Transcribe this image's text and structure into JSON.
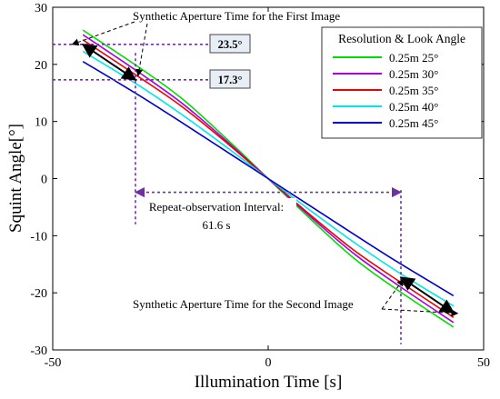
{
  "chart_data": {
    "type": "line",
    "title": "",
    "xlabel": "Illumination Time [s]",
    "ylabel": "Squint Angle[°]",
    "xlim": [
      -50,
      50
    ],
    "ylim": [
      -30,
      30
    ],
    "x_ticks": [
      -50,
      0,
      50
    ],
    "y_ticks": [
      -30,
      -20,
      -10,
      0,
      10,
      20,
      30
    ],
    "grid": false,
    "legend_title": "Resolution & Look Angle",
    "legend_position": "top-right",
    "series": [
      {
        "name": "0.25m 25°",
        "color": "#00dd00",
        "x": [
          -43,
          -30,
          -20,
          -10,
          0,
          10,
          20,
          30,
          43
        ],
        "y": [
          26,
          19.5,
          14.0,
          7.2,
          0,
          -7.2,
          -14.0,
          -19.5,
          -26
        ]
      },
      {
        "name": "0.25m 30°",
        "color": "#aa00dd",
        "x": [
          -43,
          -30,
          -20,
          -10,
          0,
          10,
          20,
          30,
          43
        ],
        "y": [
          25.2,
          18.6,
          13.2,
          6.8,
          0,
          -6.8,
          -13.2,
          -18.6,
          -25.2
        ]
      },
      {
        "name": "0.25m 35°",
        "color": "#ee0000",
        "x": [
          -43,
          -30,
          -20,
          -10,
          0,
          10,
          20,
          30,
          43
        ],
        "y": [
          24.3,
          17.8,
          12.6,
          6.5,
          0,
          -6.5,
          -12.6,
          -17.8,
          -24.3
        ]
      },
      {
        "name": "0.25m 40°",
        "color": "#00e6e6",
        "x": [
          -43,
          -30,
          -20,
          -10,
          0,
          10,
          20,
          30,
          43
        ],
        "y": [
          22.3,
          16.3,
          11.2,
          5.7,
          0,
          -5.7,
          -11.2,
          -16.3,
          -22.3
        ]
      },
      {
        "name": "0.25m 45°",
        "color": "#0000cc",
        "x": [
          -43,
          -30,
          -20,
          -10,
          0,
          10,
          20,
          30,
          43
        ],
        "y": [
          20.5,
          14.6,
          9.8,
          4.9,
          0,
          -4.9,
          -9.8,
          -14.6,
          -20.5
        ]
      }
    ],
    "reference_lines": {
      "h1_value": 23.5,
      "h2_value": 17.3,
      "v1_x": -30.8,
      "v2_x": 30.8
    },
    "value_labels": [
      "23.5°",
      "17.3°"
    ],
    "annotations": {
      "first_image": "Synthetic Aperture Time for the First Image",
      "second_image": "Synthetic Aperture Time for the Second Image",
      "interval_line1": "Repeat-observation Interval:",
      "interval_line2": "61.6 s"
    },
    "arrows": {
      "first_image_segment": {
        "x": [
          -43,
          -30.8
        ],
        "y": [
          23.5,
          17.3
        ]
      },
      "second_image_segment": {
        "x": [
          30.8,
          43
        ],
        "y": [
          -17.3,
          -23.5
        ]
      }
    },
    "colors": {
      "reference": "#7030a0",
      "arrow": "#000000"
    }
  }
}
